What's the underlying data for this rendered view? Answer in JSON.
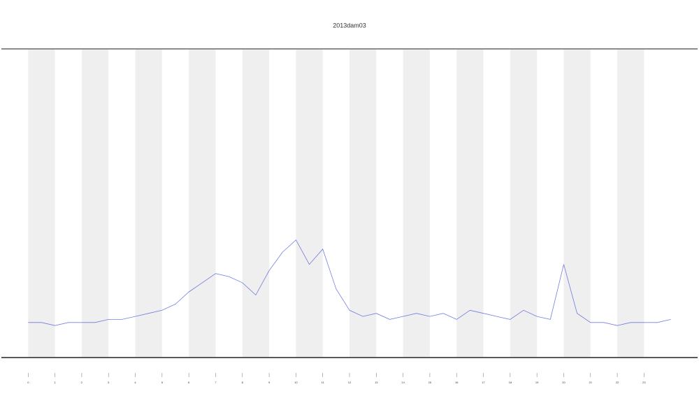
{
  "chart_data": {
    "type": "line",
    "title": "2013dam03",
    "x": [
      0,
      0.5,
      1,
      1.5,
      2,
      2.5,
      3,
      3.5,
      4,
      4.5,
      5,
      5.5,
      6,
      6.5,
      7,
      7.5,
      8,
      8.5,
      9,
      9.5,
      10,
      10.5,
      11,
      11.5,
      12,
      12.5,
      13,
      13.5,
      14,
      14.5,
      15,
      15.5,
      16,
      16.5,
      17,
      17.5,
      18,
      18.5,
      19,
      19.5,
      20,
      20.5,
      21,
      21.5,
      22,
      22.5,
      23,
      23.5,
      24
    ],
    "values": [
      11,
      11,
      10,
      11,
      11,
      11,
      12,
      12,
      13,
      14,
      15,
      17,
      21,
      24,
      27,
      26,
      24,
      20,
      28,
      34,
      38,
      30,
      35,
      22,
      15,
      13,
      14,
      12,
      13,
      14,
      13,
      14,
      12,
      15,
      14,
      13,
      12,
      15,
      13,
      12,
      30,
      14,
      11,
      11,
      10,
      11,
      11,
      11,
      12
    ],
    "color": "#3b48d8",
    "xlim": [
      -1,
      25
    ],
    "ylim": [
      0,
      100
    ],
    "xticks": [
      0,
      1,
      2,
      3,
      4,
      5,
      6,
      7,
      8,
      9,
      10,
      11,
      12,
      13,
      14,
      15,
      16,
      17,
      18,
      19,
      20,
      21,
      22,
      23
    ],
    "bands": [
      [
        0,
        1
      ],
      [
        2,
        3
      ],
      [
        4,
        5
      ],
      [
        6,
        7
      ],
      [
        8,
        9
      ],
      [
        10,
        11
      ],
      [
        12,
        13
      ],
      [
        14,
        15
      ],
      [
        16,
        17
      ],
      [
        18,
        19
      ],
      [
        20,
        21
      ],
      [
        22,
        23
      ]
    ],
    "band_color": "#efefef"
  }
}
